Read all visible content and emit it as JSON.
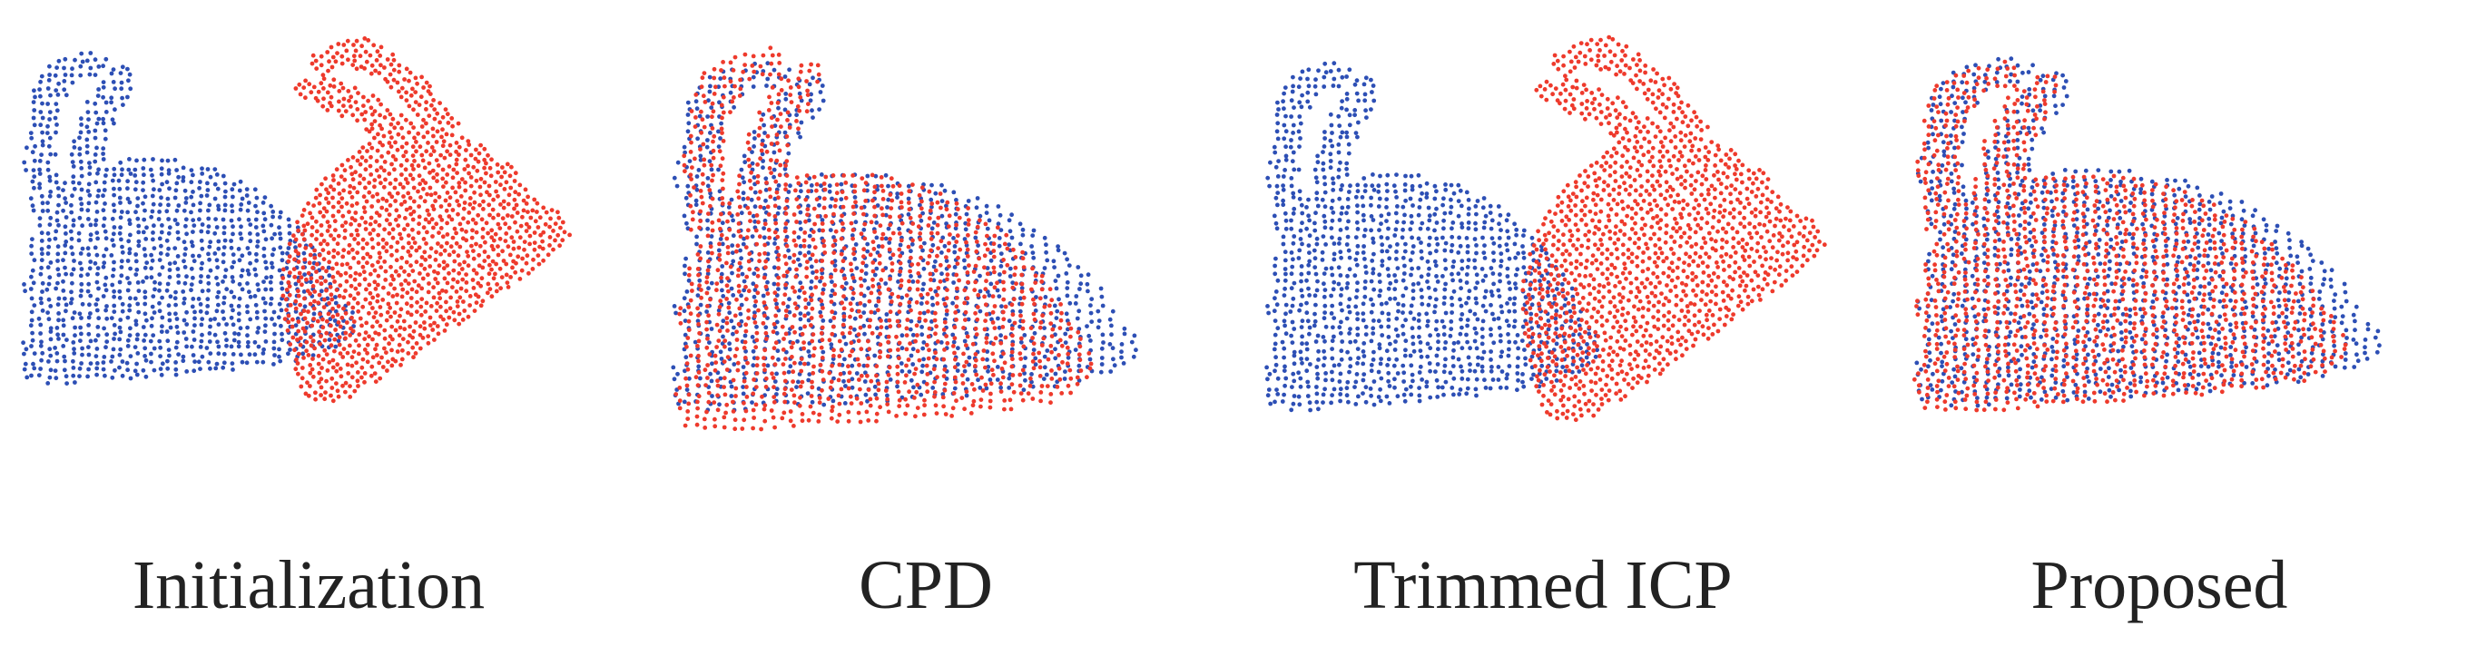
{
  "figure": {
    "colors": {
      "target": "#2d4fb5",
      "source": "#ee3a2c"
    },
    "panels": [
      {
        "id": "initialization",
        "caption": "Initialization",
        "source_pose": "rotated-offset"
      },
      {
        "id": "cpd",
        "caption": "CPD",
        "source_pose": "distorted-overlap"
      },
      {
        "id": "trimmed-icp",
        "caption": "Trimmed ICP",
        "source_pose": "rotated-offset"
      },
      {
        "id": "proposed",
        "caption": "Proposed",
        "source_pose": "aligned"
      }
    ]
  }
}
